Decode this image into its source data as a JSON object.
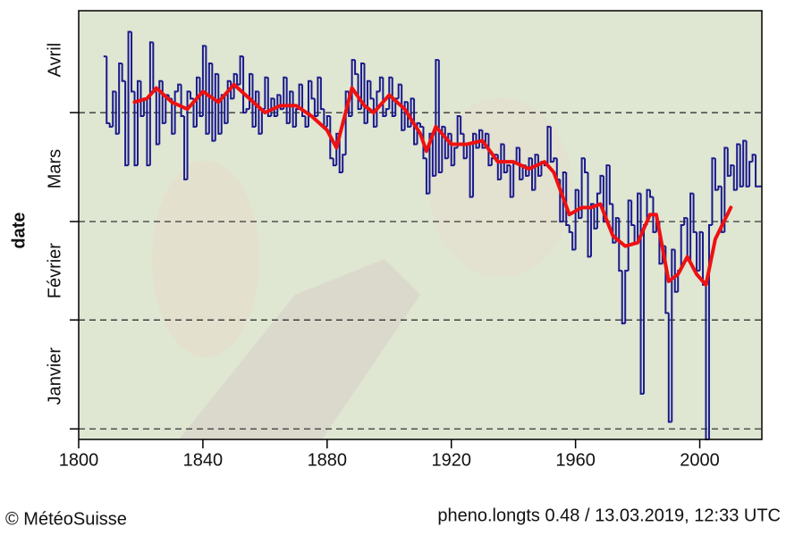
{
  "chart_data": {
    "type": "line",
    "y_label": "date",
    "footer_left": "© MétéoSuisse",
    "footer_right": "pheno.longts 0.48 / 13.03.2019, 12:33 UTC",
    "xlim": [
      1800,
      2020
    ],
    "xticks": [
      1800,
      1840,
      1880,
      1920,
      1960,
      2000
    ],
    "ylim": [
      -2,
      120
    ],
    "yticks": [
      1,
      32,
      60,
      91
    ],
    "ylabels": [
      {
        "value": 16,
        "label": "Janvier"
      },
      {
        "value": 46,
        "label": "Février"
      },
      {
        "value": 75,
        "label": "Mars"
      },
      {
        "value": 106,
        "label": "Avril"
      }
    ],
    "grid": true,
    "series": [
      {
        "color": "#1a1a8c",
        "style": "step",
        "x": [
          1808,
          1809,
          1810,
          1811,
          1812,
          1813,
          1814,
          1815,
          1816,
          1817,
          1818,
          1819,
          1820,
          1821,
          1822,
          1823,
          1824,
          1825,
          1826,
          1827,
          1828,
          1829,
          1830,
          1831,
          1832,
          1833,
          1834,
          1835,
          1836,
          1837,
          1838,
          1839,
          1840,
          1841,
          1842,
          1843,
          1844,
          1845,
          1846,
          1847,
          1848,
          1849,
          1850,
          1851,
          1852,
          1853,
          1854,
          1855,
          1856,
          1857,
          1858,
          1859,
          1860,
          1861,
          1862,
          1863,
          1864,
          1865,
          1866,
          1867,
          1868,
          1869,
          1870,
          1871,
          1872,
          1873,
          1874,
          1875,
          1876,
          1877,
          1878,
          1879,
          1880,
          1881,
          1882,
          1883,
          1884,
          1885,
          1886,
          1887,
          1888,
          1889,
          1890,
          1891,
          1892,
          1893,
          1894,
          1895,
          1896,
          1897,
          1898,
          1899,
          1900,
          1901,
          1902,
          1903,
          1904,
          1905,
          1906,
          1907,
          1908,
          1909,
          1910,
          1911,
          1912,
          1913,
          1914,
          1915,
          1916,
          1917,
          1918,
          1919,
          1920,
          1921,
          1922,
          1923,
          1924,
          1925,
          1926,
          1927,
          1928,
          1929,
          1930,
          1931,
          1932,
          1933,
          1934,
          1935,
          1936,
          1937,
          1938,
          1939,
          1940,
          1941,
          1942,
          1943,
          1944,
          1945,
          1946,
          1947,
          1948,
          1949,
          1950,
          1951,
          1952,
          1953,
          1954,
          1955,
          1956,
          1957,
          1958,
          1959,
          1960,
          1961,
          1962,
          1963,
          1964,
          1965,
          1966,
          1967,
          1968,
          1969,
          1970,
          1971,
          1972,
          1973,
          1974,
          1975,
          1976,
          1977,
          1978,
          1979,
          1980,
          1981,
          1982,
          1983,
          1984,
          1985,
          1986,
          1987,
          1988,
          1989,
          1990,
          1991,
          1992,
          1993,
          1994,
          1995,
          1996,
          1997,
          1998,
          1999,
          2000,
          2001,
          2002,
          2003,
          2004,
          2005,
          2006,
          2007,
          2008,
          2009,
          2010,
          2011,
          2012,
          2013,
          2014,
          2015,
          2016,
          2017,
          2018,
          2019
        ],
        "values": [
          107,
          88,
          87,
          97,
          85,
          105,
          100,
          76,
          114,
          97,
          76,
          100,
          90,
          95,
          76,
          111,
          97,
          82,
          100,
          88,
          96,
          95,
          85,
          97,
          99,
          90,
          72,
          97,
          95,
          87,
          101,
          90,
          110,
          85,
          105,
          83,
          102,
          85,
          96,
          88,
          100,
          95,
          102,
          99,
          107,
          91,
          92,
          102,
          87,
          97,
          85,
          92,
          101,
          90,
          95,
          90,
          96,
          92,
          101,
          88,
          97,
          87,
          92,
          99,
          90,
          87,
          100,
          95,
          90,
          101,
          92,
          87,
          90,
          78,
          76,
          85,
          74,
          79,
          97,
          90,
          106,
          102,
          92,
          105,
          88,
          100,
          95,
          87,
          97,
          101,
          90,
          92,
          101,
          90,
          95,
          99,
          86,
          94,
          87,
          95,
          82,
          88,
          87,
          78,
          68,
          85,
          73,
          106,
          74,
          87,
          78,
          85,
          76,
          81,
          90,
          85,
          78,
          82,
          67,
          85,
          81,
          86,
          81,
          85,
          76,
          78,
          79,
          72,
          82,
          74,
          76,
          67,
          77,
          81,
          72,
          76,
          73,
          78,
          69,
          79,
          73,
          77,
          76,
          87,
          77,
          78,
          72,
          60,
          74,
          59,
          57,
          52,
          69,
          61,
          78,
          74,
          50,
          65,
          58,
          68,
          73,
          60,
          76,
          65,
          54,
          61,
          46,
          31,
          46,
          66,
          59,
          54,
          68,
          11,
          59,
          69,
          67,
          57,
          60,
          48,
          53,
          34,
          3,
          52,
          40,
          46,
          59,
          61,
          49,
          68,
          57,
          46,
          57,
          42,
          -2,
          59,
          78,
          69,
          70,
          57,
          81,
          73,
          76,
          69,
          82,
          70,
          83,
          70,
          77,
          79,
          70,
          70
        ]
      },
      {
        "color": "#ee1111",
        "style": "smooth",
        "x": [
          1818,
          1822,
          1825,
          1830,
          1835,
          1840,
          1845,
          1850,
          1855,
          1860,
          1865,
          1870,
          1875,
          1880,
          1883,
          1888,
          1892,
          1895,
          1900,
          1905,
          1910,
          1912,
          1915,
          1920,
          1925,
          1930,
          1935,
          1940,
          1945,
          1950,
          1953,
          1958,
          1962,
          1965,
          1968,
          1972,
          1976,
          1980,
          1984,
          1986,
          1990,
          1993,
          1996,
          1999,
          2002,
          2005,
          2010
        ],
        "values": [
          94,
          95,
          98,
          94,
          92,
          97,
          94,
          99,
          95,
          91,
          93,
          93,
          90,
          86,
          81,
          98,
          93,
          91,
          96,
          92,
          85,
          80,
          87,
          82,
          82,
          83,
          77,
          77,
          75,
          77,
          74,
          62,
          64,
          64,
          65,
          56,
          53,
          54,
          62,
          62,
          43,
          45,
          50,
          45,
          42,
          55,
          64
        ]
      }
    ]
  }
}
